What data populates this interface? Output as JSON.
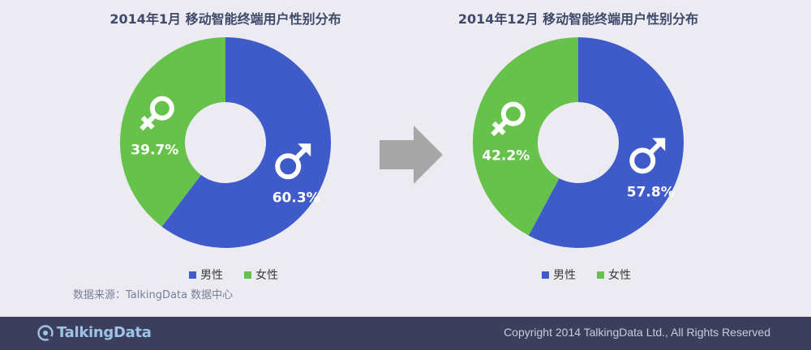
{
  "chart_data": [
    {
      "type": "pie",
      "variant": "donut",
      "title": "2014年1月 移动智能终端用户性别分布",
      "categories": [
        "男性",
        "女性"
      ],
      "values": [
        60.3,
        39.7
      ],
      "labels": [
        "60.3%",
        "39.7%"
      ],
      "colors": [
        "#3e5bc9",
        "#66c24a"
      ],
      "legend": "bottom"
    },
    {
      "type": "pie",
      "variant": "donut",
      "title": "2014年12月 移动智能终端用户性别分布",
      "categories": [
        "男性",
        "女性"
      ],
      "values": [
        57.8,
        42.2
      ],
      "labels": [
        "57.8%",
        "42.2%"
      ],
      "colors": [
        "#3e5bc9",
        "#66c24a"
      ],
      "legend": "bottom"
    }
  ],
  "icons": {
    "male": "male-symbol-icon",
    "female": "female-symbol-icon",
    "transition": "right-arrow-icon",
    "logo": "talkingdata-logo-icon"
  },
  "colors": {
    "background": "#ecebf2",
    "footer": "#3b3f5c",
    "male": "#3e5bc9",
    "female": "#66c24a",
    "arrow": "#a6a6a6"
  },
  "source_text": "数据来源：TalkingData 数据中心",
  "footer": {
    "logo_text": "TalkingData",
    "copyright": "Copyright 2014 TalkingData Ltd., All Rights Reserved"
  }
}
